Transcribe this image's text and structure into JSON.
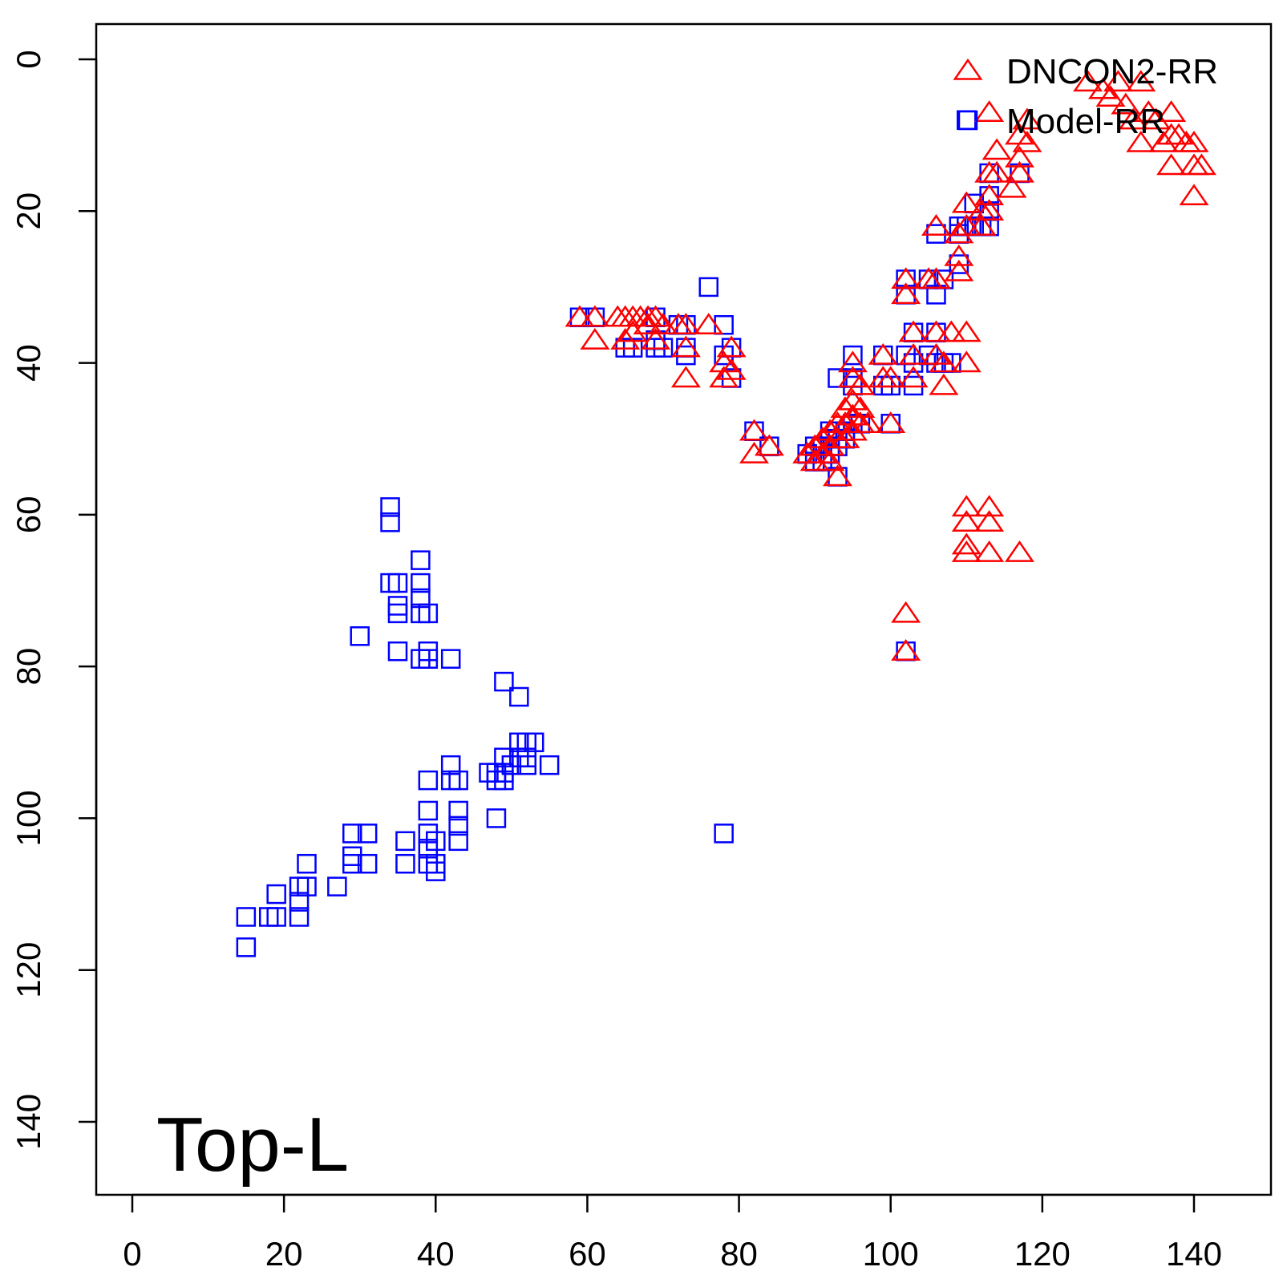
{
  "chart_data": {
    "type": "scatter",
    "title": "",
    "xlabel": "",
    "ylabel": "",
    "xlim": [
      -2,
      150
    ],
    "ylim": [
      0,
      150
    ],
    "y_reversed": true,
    "x_ticks": [
      0,
      20,
      40,
      60,
      80,
      100,
      120,
      140
    ],
    "y_ticks": [
      0,
      20,
      40,
      60,
      80,
      100,
      120,
      140
    ],
    "grid": false,
    "legend_position": "top-right",
    "annotation": "Top-L",
    "series": [
      {
        "name": "DNCON2-RR",
        "marker": "triangle",
        "color": "#ff0000",
        "points": [
          [
            59,
            34
          ],
          [
            61,
            34
          ],
          [
            61,
            37
          ],
          [
            64,
            34
          ],
          [
            65,
            34
          ],
          [
            65,
            37
          ],
          [
            66,
            34
          ],
          [
            66,
            36
          ],
          [
            67,
            34
          ],
          [
            68,
            34
          ],
          [
            68,
            35
          ],
          [
            69,
            34
          ],
          [
            69,
            37
          ],
          [
            70,
            35
          ],
          [
            72,
            35
          ],
          [
            73,
            35
          ],
          [
            73,
            38
          ],
          [
            73,
            42
          ],
          [
            76,
            35
          ],
          [
            78,
            40
          ],
          [
            78,
            42
          ],
          [
            79,
            38
          ],
          [
            79,
            41
          ],
          [
            82,
            49
          ],
          [
            82,
            52
          ],
          [
            84,
            51
          ],
          [
            89,
            52
          ],
          [
            90,
            51
          ],
          [
            90,
            53
          ],
          [
            91,
            50
          ],
          [
            91,
            52
          ],
          [
            92,
            49
          ],
          [
            92,
            51
          ],
          [
            92,
            53
          ],
          [
            93,
            48
          ],
          [
            93,
            50
          ],
          [
            93,
            55
          ],
          [
            94,
            46
          ],
          [
            94,
            48
          ],
          [
            94,
            50
          ],
          [
            95,
            40
          ],
          [
            95,
            42
          ],
          [
            95,
            45
          ],
          [
            95,
            47
          ],
          [
            95,
            49
          ],
          [
            96,
            43
          ],
          [
            96,
            46
          ],
          [
            96,
            48
          ],
          [
            97,
            48
          ],
          [
            99,
            39
          ],
          [
            99,
            42
          ],
          [
            100,
            42
          ],
          [
            100,
            48
          ],
          [
            102,
            29
          ],
          [
            102,
            31
          ],
          [
            102,
            73
          ],
          [
            102,
            78
          ],
          [
            103,
            36
          ],
          [
            103,
            39
          ],
          [
            103,
            42
          ],
          [
            105,
            29
          ],
          [
            106,
            22
          ],
          [
            106,
            29
          ],
          [
            106,
            36
          ],
          [
            106,
            39
          ],
          [
            107,
            40
          ],
          [
            107,
            43
          ],
          [
            108,
            36
          ],
          [
            109,
            23
          ],
          [
            109,
            26
          ],
          [
            109,
            28
          ],
          [
            110,
            19
          ],
          [
            110,
            22
          ],
          [
            110,
            36
          ],
          [
            110,
            40
          ],
          [
            110,
            59
          ],
          [
            110,
            61
          ],
          [
            110,
            64
          ],
          [
            110,
            65
          ],
          [
            112,
            20
          ],
          [
            112,
            22
          ],
          [
            113,
            7
          ],
          [
            113,
            15
          ],
          [
            113,
            18
          ],
          [
            113,
            20
          ],
          [
            113,
            59
          ],
          [
            113,
            61
          ],
          [
            113,
            65
          ],
          [
            114,
            12
          ],
          [
            114,
            15
          ],
          [
            116,
            17
          ],
          [
            117,
            10
          ],
          [
            117,
            13
          ],
          [
            117,
            15
          ],
          [
            117,
            65
          ],
          [
            118,
            8
          ],
          [
            118,
            11
          ],
          [
            126,
            3
          ],
          [
            128,
            4
          ],
          [
            129,
            5
          ],
          [
            130,
            3
          ],
          [
            131,
            6
          ],
          [
            132,
            8
          ],
          [
            133,
            3
          ],
          [
            133,
            11
          ],
          [
            134,
            7
          ],
          [
            135,
            8
          ],
          [
            136,
            11
          ],
          [
            137,
            7
          ],
          [
            137,
            10
          ],
          [
            137,
            14
          ],
          [
            138,
            10
          ],
          [
            139,
            11
          ],
          [
            140,
            11
          ],
          [
            140,
            14
          ],
          [
            141,
            14
          ],
          [
            140,
            18
          ]
        ]
      },
      {
        "name": "Model-RR",
        "marker": "square",
        "color": "#0000ff",
        "points": [
          [
            15,
            113
          ],
          [
            15,
            117
          ],
          [
            18,
            113
          ],
          [
            19,
            110
          ],
          [
            19,
            113
          ],
          [
            22,
            109
          ],
          [
            22,
            111
          ],
          [
            22,
            113
          ],
          [
            23,
            106
          ],
          [
            23,
            109
          ],
          [
            27,
            109
          ],
          [
            29,
            102
          ],
          [
            29,
            105
          ],
          [
            29,
            106
          ],
          [
            30,
            76
          ],
          [
            31,
            102
          ],
          [
            31,
            106
          ],
          [
            34,
            59
          ],
          [
            34,
            61
          ],
          [
            34,
            69
          ],
          [
            35,
            69
          ],
          [
            35,
            72
          ],
          [
            35,
            73
          ],
          [
            35,
            78
          ],
          [
            36,
            103
          ],
          [
            36,
            106
          ],
          [
            38,
            66
          ],
          [
            38,
            69
          ],
          [
            38,
            71
          ],
          [
            38,
            73
          ],
          [
            38,
            79
          ],
          [
            39,
            73
          ],
          [
            39,
            78
          ],
          [
            39,
            79
          ],
          [
            39,
            95
          ],
          [
            39,
            99
          ],
          [
            39,
            102
          ],
          [
            39,
            104
          ],
          [
            39,
            106
          ],
          [
            40,
            103
          ],
          [
            40,
            106
          ],
          [
            40,
            107
          ],
          [
            42,
            79
          ],
          [
            42,
            93
          ],
          [
            42,
            95
          ],
          [
            43,
            95
          ],
          [
            43,
            99
          ],
          [
            43,
            101
          ],
          [
            43,
            103
          ],
          [
            47,
            94
          ],
          [
            48,
            94
          ],
          [
            48,
            95
          ],
          [
            48,
            100
          ],
          [
            49,
            82
          ],
          [
            49,
            92
          ],
          [
            49,
            94
          ],
          [
            49,
            95
          ],
          [
            50,
            93
          ],
          [
            51,
            84
          ],
          [
            51,
            90
          ],
          [
            51,
            92
          ],
          [
            52,
            90
          ],
          [
            52,
            92
          ],
          [
            52,
            93
          ],
          [
            53,
            90
          ],
          [
            55,
            93
          ],
          [
            59,
            34
          ],
          [
            61,
            34
          ],
          [
            65,
            38
          ],
          [
            66,
            38
          ],
          [
            69,
            34
          ],
          [
            69,
            37
          ],
          [
            69,
            38
          ],
          [
            70,
            38
          ],
          [
            72,
            35
          ],
          [
            73,
            35
          ],
          [
            73,
            38
          ],
          [
            73,
            39
          ],
          [
            76,
            30
          ],
          [
            78,
            35
          ],
          [
            78,
            39
          ],
          [
            79,
            38
          ],
          [
            79,
            42
          ],
          [
            82,
            49
          ],
          [
            84,
            51
          ],
          [
            89,
            52
          ],
          [
            90,
            51
          ],
          [
            90,
            53
          ],
          [
            91,
            51
          ],
          [
            91,
            53
          ],
          [
            92,
            49
          ],
          [
            92,
            50
          ],
          [
            92,
            51
          ],
          [
            92,
            52
          ],
          [
            93,
            42
          ],
          [
            93,
            50
          ],
          [
            93,
            51
          ],
          [
            93,
            55
          ],
          [
            94,
            49
          ],
          [
            94,
            50
          ],
          [
            95,
            39
          ],
          [
            95,
            42
          ],
          [
            95,
            43
          ],
          [
            95,
            48
          ],
          [
            96,
            48
          ],
          [
            99,
            39
          ],
          [
            99,
            43
          ],
          [
            100,
            43
          ],
          [
            100,
            48
          ],
          [
            102,
            29
          ],
          [
            102,
            31
          ],
          [
            102,
            39
          ],
          [
            102,
            78
          ],
          [
            103,
            36
          ],
          [
            103,
            40
          ],
          [
            103,
            43
          ],
          [
            105,
            29
          ],
          [
            105,
            39
          ],
          [
            106,
            23
          ],
          [
            106,
            31
          ],
          [
            106,
            36
          ],
          [
            106,
            40
          ],
          [
            107,
            29
          ],
          [
            107,
            40
          ],
          [
            108,
            40
          ],
          [
            109,
            22
          ],
          [
            109,
            23
          ],
          [
            109,
            27
          ],
          [
            110,
            8
          ],
          [
            110,
            22
          ],
          [
            111,
            19
          ],
          [
            111,
            22
          ],
          [
            112,
            22
          ],
          [
            113,
            15
          ],
          [
            113,
            18
          ],
          [
            113,
            20
          ],
          [
            113,
            22
          ],
          [
            117,
            15
          ],
          [
            78,
            102
          ]
        ]
      }
    ]
  }
}
